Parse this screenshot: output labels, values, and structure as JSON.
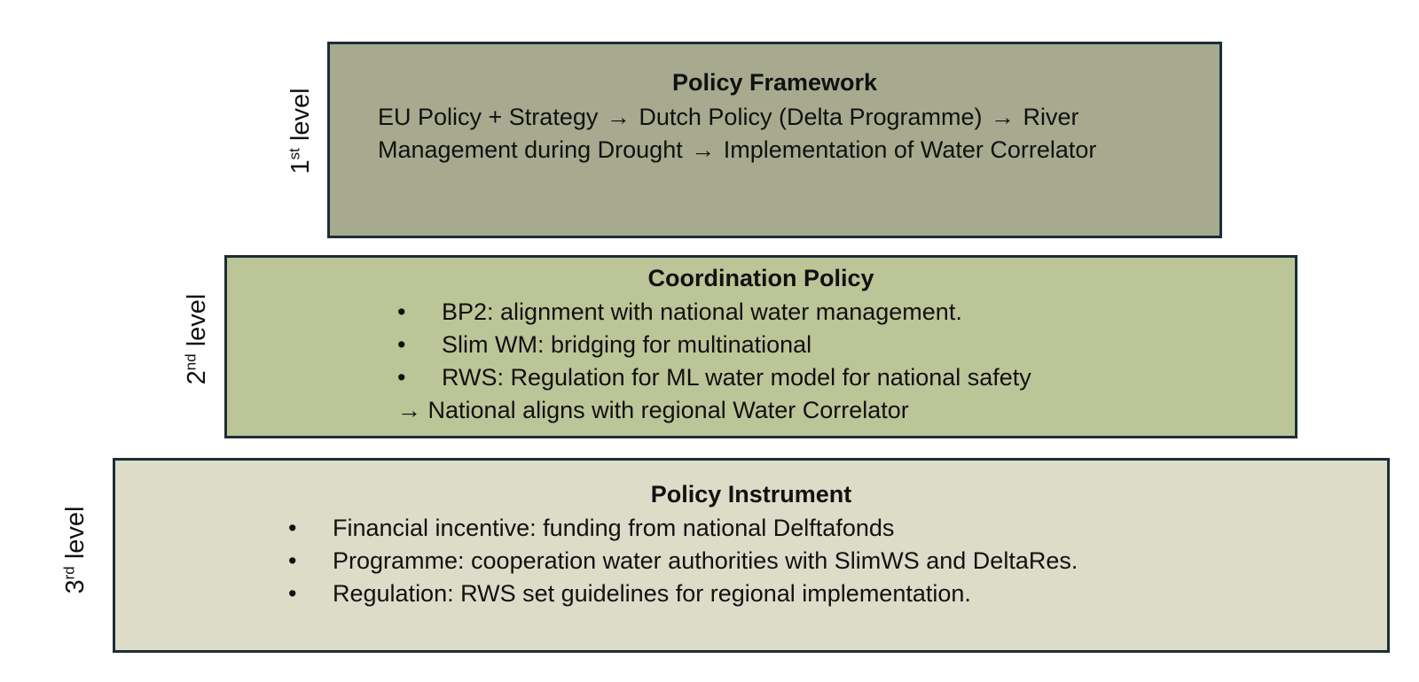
{
  "levels": [
    {
      "label": {
        "num": "1",
        "suffix": "st",
        "word": "level"
      },
      "title": "Policy Framework",
      "text_parts": [
        "EU Policy + Strategy",
        "Dutch Policy (Delta Programme)",
        "River Management during Drought",
        "Implementation of Water Correlator"
      ],
      "arrow": "→"
    },
    {
      "label": {
        "num": "2",
        "suffix": "nd",
        "word": "level"
      },
      "title": "Coordination Policy",
      "bullet": "•",
      "bullets": [
        "BP2: alignment with national water management.",
        "Slim WM: bridging for multinational",
        "RWS: Regulation for ML water model for national safety"
      ],
      "conclusion_arrow": "→",
      "conclusion": "National aligns with regional Water Correlator"
    },
    {
      "label": {
        "num": "3",
        "suffix": "rd",
        "word": "level"
      },
      "title": "Policy Instrument",
      "bullet": "•",
      "bullets": [
        "Financial incentive: funding from national Delftafonds",
        "Programme: cooperation water authorities with SlimWS and DeltaRes.",
        "Regulation: RWS set guidelines for regional implementation."
      ]
    }
  ],
  "colors": {
    "level1_fill": "#a7aa8e",
    "level2_fill": "#bcc597",
    "level3_fill": "#dcdcc9",
    "border": "#1c2e36"
  }
}
